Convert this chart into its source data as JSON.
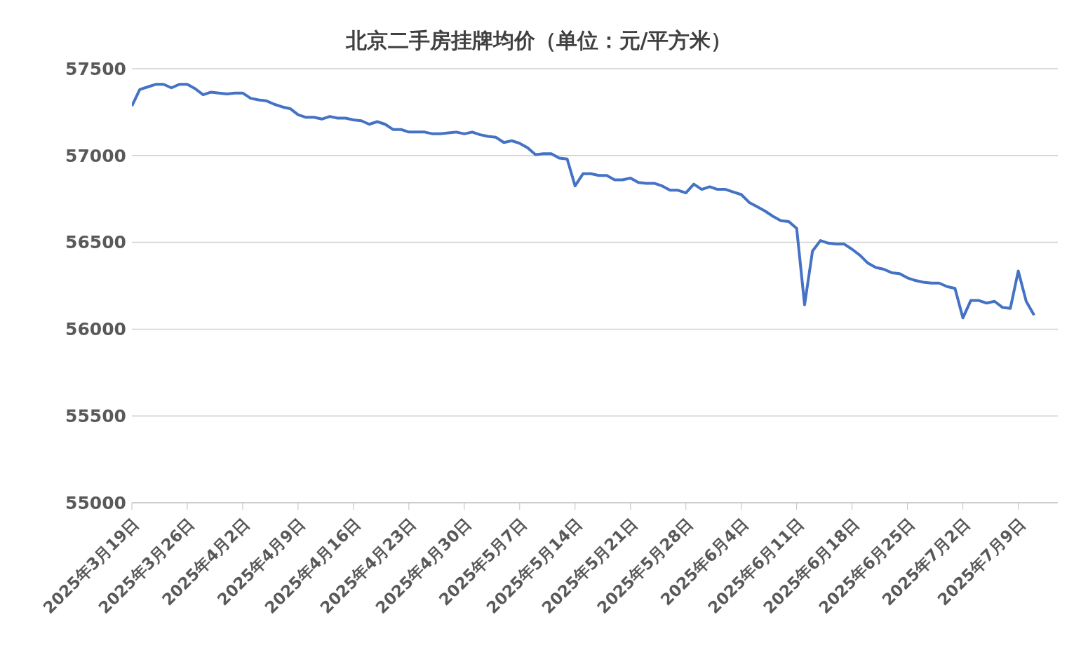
{
  "chart_data": {
    "type": "line",
    "title": "北京二手房挂牌均价（单位：元/平方米）",
    "x": [
      "2025-03-19",
      "2025-03-20",
      "2025-03-21",
      "2025-03-22",
      "2025-03-23",
      "2025-03-24",
      "2025-03-25",
      "2025-03-26",
      "2025-03-27",
      "2025-03-28",
      "2025-03-29",
      "2025-03-30",
      "2025-03-31",
      "2025-04-01",
      "2025-04-02",
      "2025-04-03",
      "2025-04-04",
      "2025-04-05",
      "2025-04-06",
      "2025-04-07",
      "2025-04-08",
      "2025-04-09",
      "2025-04-10",
      "2025-04-11",
      "2025-04-12",
      "2025-04-13",
      "2025-04-14",
      "2025-04-15",
      "2025-04-16",
      "2025-04-17",
      "2025-04-18",
      "2025-04-19",
      "2025-04-20",
      "2025-04-21",
      "2025-04-22",
      "2025-04-23",
      "2025-04-24",
      "2025-04-25",
      "2025-04-26",
      "2025-04-27",
      "2025-04-28",
      "2025-04-29",
      "2025-04-30",
      "2025-05-01",
      "2025-05-02",
      "2025-05-03",
      "2025-05-04",
      "2025-05-05",
      "2025-05-06",
      "2025-05-07",
      "2025-05-08",
      "2025-05-09",
      "2025-05-10",
      "2025-05-11",
      "2025-05-12",
      "2025-05-13",
      "2025-05-14",
      "2025-05-15",
      "2025-05-16",
      "2025-05-17",
      "2025-05-18",
      "2025-05-19",
      "2025-05-20",
      "2025-05-21",
      "2025-05-22",
      "2025-05-23",
      "2025-05-24",
      "2025-05-25",
      "2025-05-26",
      "2025-05-27",
      "2025-05-28",
      "2025-05-29",
      "2025-05-30",
      "2025-05-31",
      "2025-06-01",
      "2025-06-02",
      "2025-06-03",
      "2025-06-04",
      "2025-06-05",
      "2025-06-06",
      "2025-06-07",
      "2025-06-08",
      "2025-06-09",
      "2025-06-10",
      "2025-06-11",
      "2025-06-12",
      "2025-06-13",
      "2025-06-14",
      "2025-06-15",
      "2025-06-16",
      "2025-06-17",
      "2025-06-18",
      "2025-06-19",
      "2025-06-20",
      "2025-06-21",
      "2025-06-22",
      "2025-06-23",
      "2025-06-24",
      "2025-06-25",
      "2025-06-26",
      "2025-06-27",
      "2025-06-28",
      "2025-06-29",
      "2025-06-30",
      "2025-07-01",
      "2025-07-02",
      "2025-07-03",
      "2025-07-04",
      "2025-07-05",
      "2025-07-06",
      "2025-07-07",
      "2025-07-08",
      "2025-07-09",
      "2025-07-10",
      "2025-07-11"
    ],
    "series": [
      {
        "color": "#4472c4",
        "values": [
          57285,
          57380,
          57395,
          57410,
          57410,
          57390,
          57410,
          57410,
          57385,
          57350,
          57365,
          57360,
          57355,
          57360,
          57360,
          57330,
          57320,
          57315,
          57295,
          57280,
          57270,
          57235,
          57220,
          57220,
          57210,
          57225,
          57215,
          57215,
          57205,
          57200,
          57180,
          57195,
          57180,
          57150,
          57150,
          57135,
          57135,
          57135,
          57125,
          57125,
          57130,
          57135,
          57125,
          57135,
          57120,
          57110,
          57105,
          57075,
          57085,
          57070,
          57045,
          57005,
          57010,
          57010,
          56985,
          56980,
          56825,
          56895,
          56895,
          56885,
          56885,
          56860,
          56860,
          56870,
          56845,
          56840,
          56840,
          56825,
          56800,
          56800,
          56785,
          56835,
          56805,
          56820,
          56805,
          56805,
          56790,
          56775,
          56730,
          56705,
          56680,
          56650,
          56625,
          56620,
          56580,
          56140,
          56450,
          56510,
          56495,
          56490,
          56490,
          56460,
          56425,
          56380,
          56355,
          56345,
          56325,
          56320,
          56295,
          56280,
          56270,
          56265,
          56265,
          56245,
          56235,
          56065,
          56165,
          56165,
          56150,
          56160,
          56125,
          56120,
          56335,
          56160,
          56080
        ]
      }
    ],
    "xlim": [
      "2025-03-19",
      "2025-07-14"
    ],
    "xticks": [
      {
        "value": "2025-03-19",
        "label": "2025年3月19日"
      },
      {
        "value": "2025-03-26",
        "label": "2025年3月26日"
      },
      {
        "value": "2025-04-02",
        "label": "2025年4月2日"
      },
      {
        "value": "2025-04-09",
        "label": "2025年4月9日"
      },
      {
        "value": "2025-04-16",
        "label": "2025年4月16日"
      },
      {
        "value": "2025-04-23",
        "label": "2025年4月23日"
      },
      {
        "value": "2025-04-30",
        "label": "2025年4月30日"
      },
      {
        "value": "2025-05-07",
        "label": "2025年5月7日"
      },
      {
        "value": "2025-05-14",
        "label": "2025年5月14日"
      },
      {
        "value": "2025-05-21",
        "label": "2025年5月21日"
      },
      {
        "value": "2025-05-28",
        "label": "2025年5月28日"
      },
      {
        "value": "2025-06-04",
        "label": "2025年6月4日"
      },
      {
        "value": "2025-06-11",
        "label": "2025年6月11日"
      },
      {
        "value": "2025-06-18",
        "label": "2025年6月18日"
      },
      {
        "value": "2025-06-25",
        "label": "2025年6月25日"
      },
      {
        "value": "2025-07-02",
        "label": "2025年7月2日"
      },
      {
        "value": "2025-07-09",
        "label": "2025年7月9日"
      }
    ],
    "ylim": [
      55000,
      57500
    ],
    "yticks": [
      55000,
      55500,
      56000,
      56500,
      57000,
      57500
    ],
    "grid": "y",
    "legend": false,
    "marker": "none",
    "line_style": "solid"
  }
}
